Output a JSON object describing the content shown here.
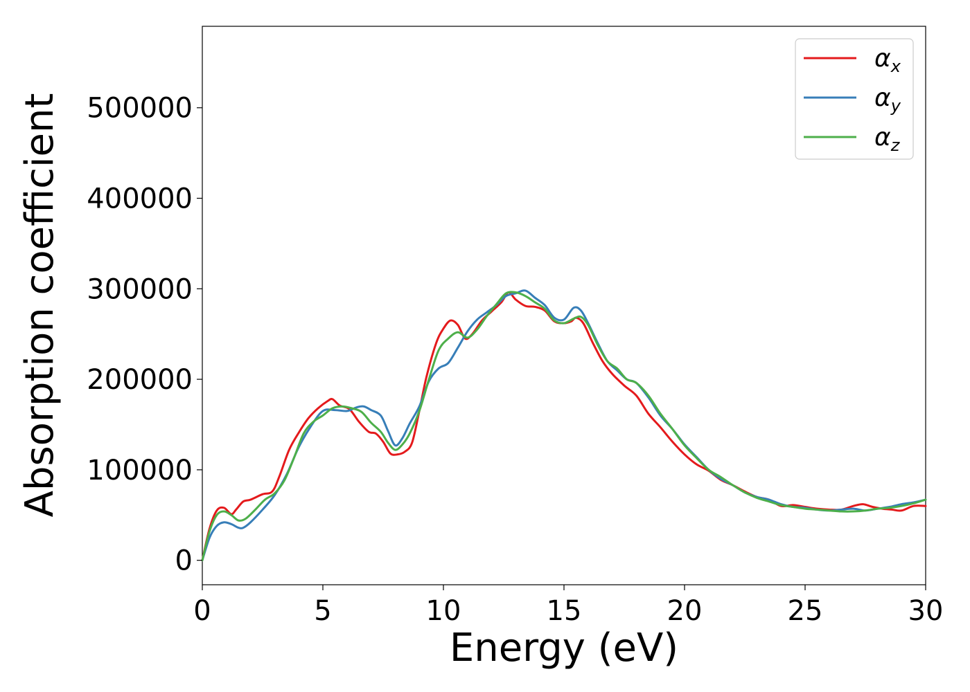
{
  "chart_data": {
    "type": "line",
    "title": "",
    "xlabel": "Energy (eV)",
    "ylabel": "Absorption coefficient",
    "xlim": [
      0,
      30
    ],
    "ylim": [
      -27000,
      590000
    ],
    "xticks": [
      0,
      5,
      10,
      15,
      20,
      25,
      30
    ],
    "yticks": [
      0,
      100000,
      200000,
      300000,
      400000,
      500000
    ],
    "grid": false,
    "legend_position": "top-right",
    "series": [
      {
        "name": "α_x",
        "legend_base": "α",
        "legend_sub": "x",
        "color": "#e41a1c",
        "x": [
          0,
          0.3,
          0.6,
          0.9,
          1.2,
          1.4,
          1.7,
          2.0,
          2.5,
          2.9,
          3.2,
          3.6,
          4.0,
          4.4,
          4.8,
          5.2,
          5.4,
          5.7,
          6.1,
          6.5,
          6.9,
          7.2,
          7.5,
          7.8,
          8.1,
          8.4,
          8.7,
          9.0,
          9.3,
          9.7,
          10.0,
          10.3,
          10.6,
          10.9,
          11.2,
          11.6,
          12.0,
          12.4,
          12.7,
          13.0,
          13.4,
          13.8,
          14.2,
          14.6,
          15.0,
          15.3,
          15.5,
          15.8,
          16.2,
          16.6,
          17.0,
          17.5,
          18.0,
          18.5,
          19.0,
          19.5,
          20.0,
          20.5,
          21.0,
          21.5,
          22.0,
          22.5,
          23.0,
          23.5,
          24.0,
          24.5,
          25.0,
          25.5,
          26.0,
          26.5,
          27.0,
          27.4,
          27.8,
          28.2,
          28.6,
          29.0,
          29.5,
          30.0
        ],
        "values": [
          0,
          35000,
          55000,
          58000,
          51000,
          56000,
          65000,
          67000,
          73000,
          76000,
          93000,
          122000,
          141000,
          157000,
          168000,
          176000,
          178000,
          171000,
          167000,
          153000,
          142000,
          140000,
          131000,
          118000,
          117000,
          120000,
          130000,
          165000,
          203000,
          240000,
          256000,
          265000,
          260000,
          245000,
          250000,
          265000,
          275000,
          285000,
          296000,
          288000,
          281000,
          280000,
          276000,
          264000,
          262000,
          264000,
          268000,
          262000,
          240000,
          220000,
          206000,
          193000,
          182000,
          162000,
          147000,
          131000,
          117000,
          106000,
          99000,
          89000,
          83000,
          76000,
          70000,
          67000,
          60000,
          61000,
          59000,
          57000,
          56000,
          56000,
          60000,
          62000,
          59000,
          57000,
          56000,
          55000,
          60000,
          60000
        ]
      },
      {
        "name": "α_y",
        "legend_base": "α",
        "legend_sub": "y",
        "color": "#377eb8",
        "x": [
          0,
          0.3,
          0.6,
          0.9,
          1.2,
          1.5,
          1.7,
          2.0,
          2.5,
          3.0,
          3.5,
          4.0,
          4.5,
          5.0,
          5.5,
          6.0,
          6.4,
          6.7,
          7.0,
          7.4,
          7.7,
          8.0,
          8.3,
          8.6,
          9.0,
          9.4,
          9.8,
          10.2,
          10.6,
          11.0,
          11.4,
          11.8,
          12.2,
          12.6,
          13.0,
          13.4,
          13.8,
          14.2,
          14.6,
          15.0,
          15.4,
          15.7,
          16.0,
          16.4,
          16.8,
          17.2,
          17.6,
          18.0,
          18.5,
          19.0,
          19.5,
          20.0,
          20.5,
          21.0,
          21.5,
          22.0,
          22.5,
          23.0,
          23.5,
          24.0,
          24.5,
          25.0,
          25.5,
          26.0,
          26.5,
          27.0,
          27.5,
          28.0,
          28.5,
          29.0,
          29.5,
          30.0
        ],
        "values": [
          0,
          25000,
          38000,
          42000,
          40000,
          36000,
          36000,
          42000,
          56000,
          72000,
          95000,
          125000,
          148000,
          165000,
          166000,
          165000,
          169000,
          170000,
          166000,
          160000,
          143000,
          127000,
          135000,
          151000,
          170000,
          198000,
          212000,
          218000,
          235000,
          253000,
          266000,
          274000,
          282000,
          292000,
          295000,
          298000,
          290000,
          282000,
          268000,
          266000,
          279000,
          276000,
          262000,
          240000,
          220000,
          210000,
          200000,
          196000,
          180000,
          160000,
          145000,
          128000,
          114000,
          100000,
          90000,
          83000,
          75000,
          70000,
          67000,
          62000,
          59000,
          58000,
          56000,
          55000,
          56000,
          57000,
          55000,
          57000,
          59000,
          62000,
          64000,
          67000
        ]
      },
      {
        "name": "α_z",
        "legend_base": "α",
        "legend_sub": "z",
        "color": "#4daf4a",
        "x": [
          0,
          0.3,
          0.6,
          0.9,
          1.2,
          1.5,
          1.8,
          2.2,
          2.6,
          3.0,
          3.4,
          3.8,
          4.2,
          4.6,
          5.0,
          5.4,
          5.8,
          6.2,
          6.6,
          7.0,
          7.4,
          7.7,
          8.0,
          8.3,
          8.6,
          9.0,
          9.4,
          9.8,
          10.2,
          10.6,
          11.0,
          11.4,
          11.8,
          12.2,
          12.6,
          13.0,
          13.4,
          13.8,
          14.2,
          14.6,
          15.0,
          15.4,
          15.7,
          16.0,
          16.4,
          16.8,
          17.2,
          17.6,
          18.0,
          18.5,
          19.0,
          19.5,
          20.0,
          20.5,
          21.0,
          21.5,
          22.0,
          22.5,
          23.0,
          23.5,
          24.0,
          24.5,
          25.0,
          25.5,
          26.0,
          26.5,
          27.0,
          27.5,
          28.0,
          28.5,
          29.0,
          29.5,
          30.0
        ],
        "values": [
          0,
          32000,
          50000,
          54000,
          50000,
          44000,
          46000,
          56000,
          67000,
          74000,
          88000,
          113000,
          140000,
          153000,
          160000,
          168000,
          170000,
          168000,
          164000,
          152000,
          142000,
          130000,
          122000,
          128000,
          140000,
          165000,
          200000,
          232000,
          245000,
          252000,
          246000,
          255000,
          270000,
          283000,
          295000,
          296000,
          292000,
          285000,
          278000,
          265000,
          262000,
          267000,
          269000,
          260000,
          238000,
          220000,
          212000,
          200000,
          196000,
          182000,
          162000,
          145000,
          127000,
          113000,
          100000,
          92000,
          83000,
          75000,
          69000,
          65000,
          61000,
          59000,
          57000,
          56000,
          55000,
          54000,
          54000,
          55000,
          57000,
          58000,
          60000,
          63000,
          67000
        ]
      }
    ]
  }
}
